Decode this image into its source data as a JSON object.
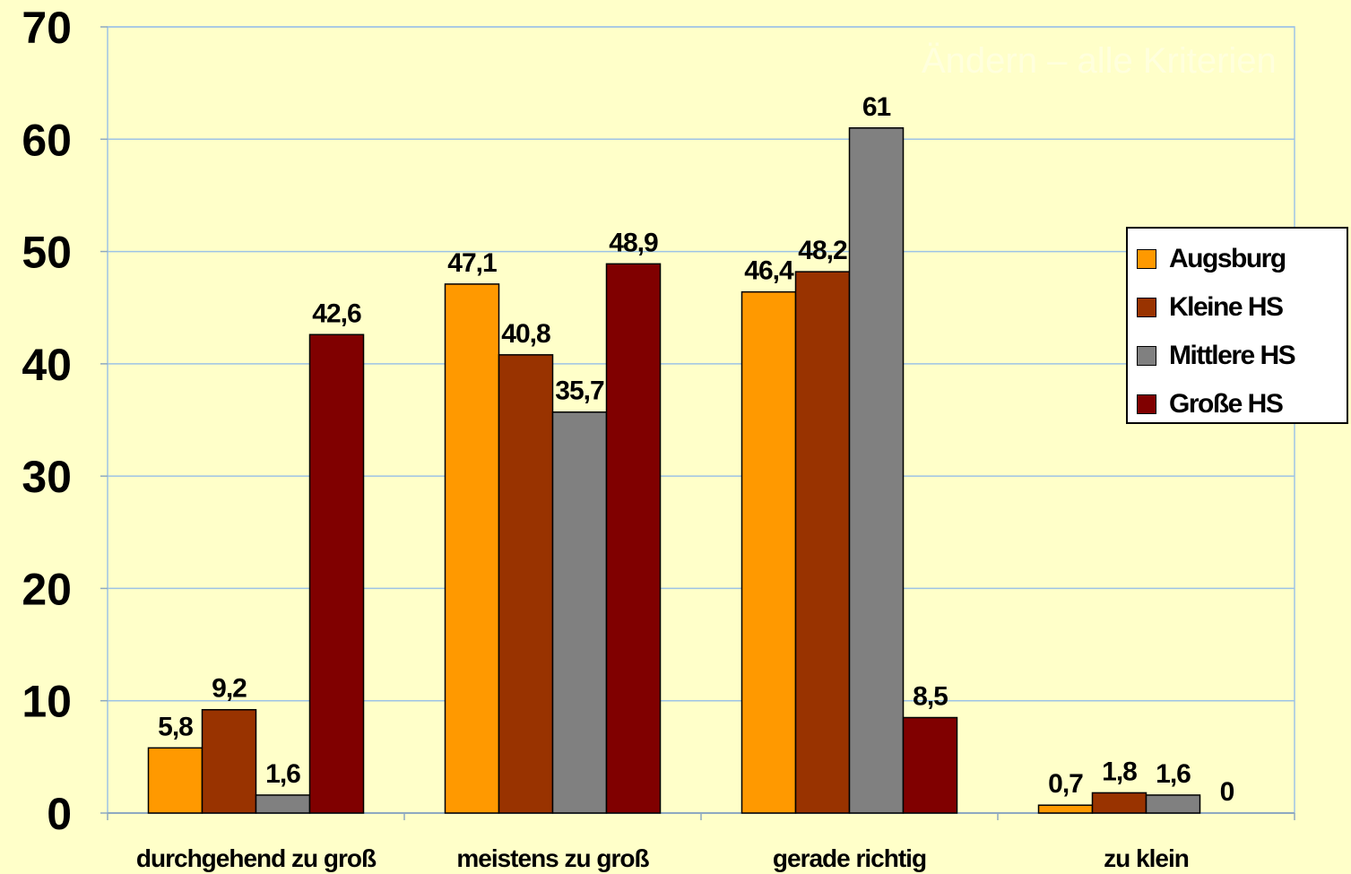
{
  "watermark_text": "Ändern – alle Kriterien",
  "colors": {
    "background": "#FFFFC9",
    "gridline": "#9DC3E6",
    "axis": "#8EA9C1"
  },
  "chart_data": {
    "type": "bar",
    "categories": [
      "durchgehend zu groß",
      "meistens zu groß",
      "gerade richtig",
      "zu klein"
    ],
    "series": [
      {
        "name": "Augsburg",
        "color": "#FF9900",
        "values": [
          5.8,
          47.1,
          46.4,
          0.7
        ],
        "labels": [
          "5,8",
          "47,1",
          "46,4",
          "0,7"
        ]
      },
      {
        "name": "Kleine HS",
        "color": "#993300",
        "values": [
          9.2,
          40.8,
          48.2,
          1.8
        ],
        "labels": [
          "9,2",
          "40,8",
          "48,2",
          "1,8"
        ]
      },
      {
        "name": "Mittlere HS",
        "color": "#808080",
        "values": [
          1.6,
          35.7,
          61,
          1.6
        ],
        "labels": [
          "1,6",
          "35,7",
          "61",
          "1,6"
        ]
      },
      {
        "name": "Große HS",
        "color": "#800000",
        "values": [
          42.6,
          48.9,
          8.5,
          0
        ],
        "labels": [
          "42,6",
          "48,9",
          "8,5",
          "0"
        ]
      }
    ],
    "yticks": [
      "0",
      "10",
      "20",
      "30",
      "40",
      "50",
      "60",
      "70"
    ],
    "ylim": [
      0,
      70
    ],
    "grid": true,
    "legend_position": "right",
    "title": "",
    "xlabel": "",
    "ylabel": ""
  }
}
